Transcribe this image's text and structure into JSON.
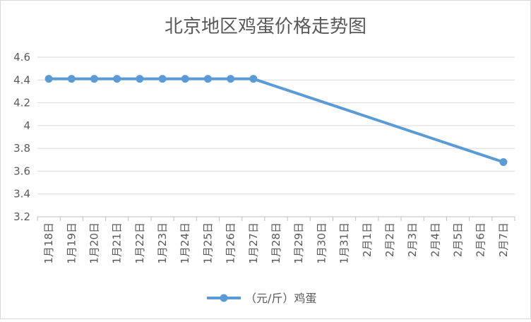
{
  "chart_data": {
    "type": "line",
    "title": "北京地区鸡蛋价格走势图",
    "xlabel": "",
    "ylabel": "",
    "categories": [
      "1月18日",
      "1月19日",
      "1月20日",
      "1月21日",
      "1月22日",
      "1月23日",
      "1月24日",
      "1月25日",
      "1月26日",
      "1月27日",
      "1月28日",
      "1月29日",
      "1月30日",
      "1月31日",
      "2月1日",
      "2月2日",
      "2月3日",
      "2月4日",
      "2月5日",
      "2月6日",
      "2月7日"
    ],
    "series": [
      {
        "name": "（元/斤）鸡蛋",
        "color": "#5B9BD5",
        "values": [
          4.41,
          4.41,
          4.41,
          4.41,
          4.41,
          4.41,
          4.41,
          4.41,
          4.41,
          4.41,
          null,
          null,
          null,
          null,
          null,
          null,
          null,
          null,
          null,
          null,
          3.68
        ]
      }
    ],
    "ylim": [
      3.2,
      4.6
    ],
    "yticks": [
      "3.2",
      "3.4",
      "3.6",
      "3.8",
      "4",
      "4.2",
      "4.4",
      "4.6"
    ],
    "grid": true,
    "legend_position": "bottom"
  }
}
